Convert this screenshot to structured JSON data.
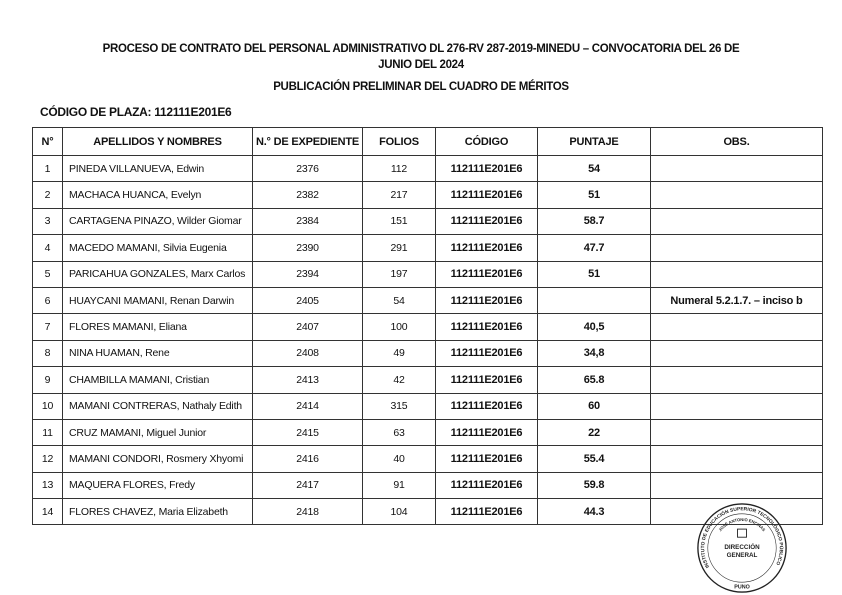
{
  "header": {
    "title_line1": "PROCESO DE CONTRATO DEL PERSONAL ADMINISTRATIVO DL 276-RV 287-2019-MINEDU – CONVOCATORIA DEL 26 DE",
    "title_line2": "JUNIO DEL 2024",
    "subtitle": "PUBLICACIÓN PRELIMINAR DEL CUADRO DE MÉRITOS",
    "plaza": "CÓDIGO DE PLAZA: 112111E201E6"
  },
  "table": {
    "columns": [
      "N°",
      "APELLIDOS Y NOMBRES",
      "N.° DE EXPEDIENTE",
      "FOLIOS",
      "CÓDIGO",
      "PUNTAJE",
      "OBS."
    ],
    "rows": [
      {
        "n": "1",
        "name": "PINEDA VILLANUEVA, Edwin",
        "exp": "2376",
        "folios": "112",
        "codigo": "112111E201E6",
        "puntaje": "54",
        "obs": ""
      },
      {
        "n": "2",
        "name": "MACHACA HUANCA, Evelyn",
        "exp": "2382",
        "folios": "217",
        "codigo": "112111E201E6",
        "puntaje": "51",
        "obs": ""
      },
      {
        "n": "3",
        "name": "CARTAGENA PINAZO, Wilder Giomar",
        "exp": "2384",
        "folios": "151",
        "codigo": "112111E201E6",
        "puntaje": "58.7",
        "obs": ""
      },
      {
        "n": "4",
        "name": "MACEDO MAMANI, Silvia Eugenia",
        "exp": "2390",
        "folios": "291",
        "codigo": "112111E201E6",
        "puntaje": "47.7",
        "obs": ""
      },
      {
        "n": "5",
        "name": "PARICAHUA GONZALES, Marx Carlos",
        "exp": "2394",
        "folios": "197",
        "codigo": "112111E201E6",
        "puntaje": "51",
        "obs": ""
      },
      {
        "n": "6",
        "name": "HUAYCANI MAMANI, Renan Darwin",
        "exp": "2405",
        "folios": "54",
        "codigo": "112111E201E6",
        "puntaje": "",
        "obs": "Numeral 5.2.1.7. – inciso b"
      },
      {
        "n": "7",
        "name": "FLORES MAMANI, Eliana",
        "exp": "2407",
        "folios": "100",
        "codigo": "112111E201E6",
        "puntaje": "40,5",
        "obs": ""
      },
      {
        "n": "8",
        "name": "NINA HUAMAN, Rene",
        "exp": "2408",
        "folios": "49",
        "codigo": "112111E201E6",
        "puntaje": "34,8",
        "obs": ""
      },
      {
        "n": "9",
        "name": "CHAMBILLA MAMANI, Cristian",
        "exp": "2413",
        "folios": "42",
        "codigo": "112111E201E6",
        "puntaje": "65.8",
        "obs": ""
      },
      {
        "n": "10",
        "name": "MAMANI CONTRERAS, Nathaly Edith",
        "exp": "2414",
        "folios": "315",
        "codigo": "112111E201E6",
        "puntaje": "60",
        "obs": ""
      },
      {
        "n": "11",
        "name": "CRUZ MAMANI, Miguel Junior",
        "exp": "2415",
        "folios": "63",
        "codigo": "112111E201E6",
        "puntaje": "22",
        "obs": ""
      },
      {
        "n": "12",
        "name": "MAMANI CONDORI, Rosmery Xhyomi",
        "exp": "2416",
        "folios": "40",
        "codigo": "112111E201E6",
        "puntaje": "55.4",
        "obs": ""
      },
      {
        "n": "13",
        "name": "MAQUERA FLORES, Fredy",
        "exp": "2417",
        "folios": "91",
        "codigo": "112111E201E6",
        "puntaje": "59.8",
        "obs": ""
      },
      {
        "n": "14",
        "name": "FLORES CHAVEZ, Maria Elizabeth",
        "exp": "2418",
        "folios": "104",
        "codigo": "112111E201E6",
        "puntaje": "44.3",
        "obs": ""
      }
    ]
  },
  "stamp": {
    "outer": "INSTITUTO DE EDUCACIÓN SUPERIOR TECNOLÓGICO PÚBLICO",
    "inner": "JOSÉ ANTONIO ENCINAS",
    "center1": "DIRECCIÓN",
    "center2": "GENERAL",
    "bottom": "PUNO",
    "color": "#222222"
  }
}
